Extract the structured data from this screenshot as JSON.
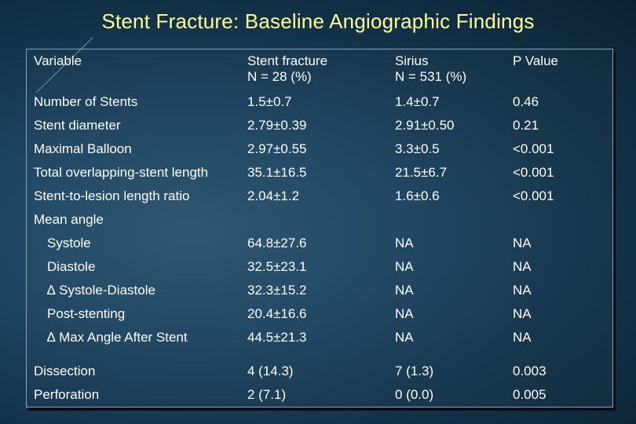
{
  "title": "Stent Fracture:  Baseline Angiographic Findings",
  "table": {
    "headers": [
      {
        "line1": "Variable",
        "line2": ""
      },
      {
        "line1": "Stent fracture",
        "line2": "N = 28 (%)"
      },
      {
        "line1": "Sirius",
        "line2": "N = 531 (%)"
      },
      {
        "line1": "P Value",
        "line2": ""
      }
    ],
    "rows": [
      {
        "label": "Number of Stents",
        "fracture": "1.5±0.7",
        "sirius": "1.4±0.7",
        "p": "0.46",
        "indent": false
      },
      {
        "label": "Stent diameter",
        "fracture": "2.79±0.39",
        "sirius": "2.91±0.50",
        "p": "0.21",
        "indent": false
      },
      {
        "label": "Maximal Balloon",
        "fracture": "2.97±0.55",
        "sirius": "3.3±0.5",
        "p": "<0.001",
        "indent": false
      },
      {
        "label": "Total overlapping-stent length",
        "fracture": "35.1±16.5",
        "sirius": "21.5±6.7",
        "p": "<0.001",
        "indent": false
      },
      {
        "label": "Stent-to-lesion length ratio",
        "fracture": "2.04±1.2",
        "sirius": "1.6±0.6",
        "p": "<0.001",
        "indent": false
      },
      {
        "label": "Mean angle",
        "fracture": "",
        "sirius": "",
        "p": "",
        "indent": false
      },
      {
        "label": "Systole",
        "fracture": "64.8±27.6",
        "sirius": "NA",
        "p": "NA",
        "indent": true
      },
      {
        "label": "Diastole",
        "fracture": "32.5±23.1",
        "sirius": "NA",
        "p": "NA",
        "indent": true
      },
      {
        "label": "∆ Systole-Diastole",
        "fracture": "32.3±15.2",
        "sirius": "NA",
        "p": "NA",
        "indent": true
      },
      {
        "label": "Post-stenting",
        "fracture": "20.4±16.6",
        "sirius": "NA",
        "p": "NA",
        "indent": true
      },
      {
        "label": "∆ Max Angle After Stent",
        "fracture": "44.5±21.3",
        "sirius": "NA",
        "p": "NA",
        "indent": true
      },
      {
        "label": "Dissection",
        "fracture": "4 (14.3)",
        "sirius": "7 (1.3)",
        "p": "0.003",
        "indent": false
      },
      {
        "label": "Perforation",
        "fracture": "2 (7.1)",
        "sirius": "0 (0.0)",
        "p": "0.005",
        "indent": false
      }
    ]
  }
}
